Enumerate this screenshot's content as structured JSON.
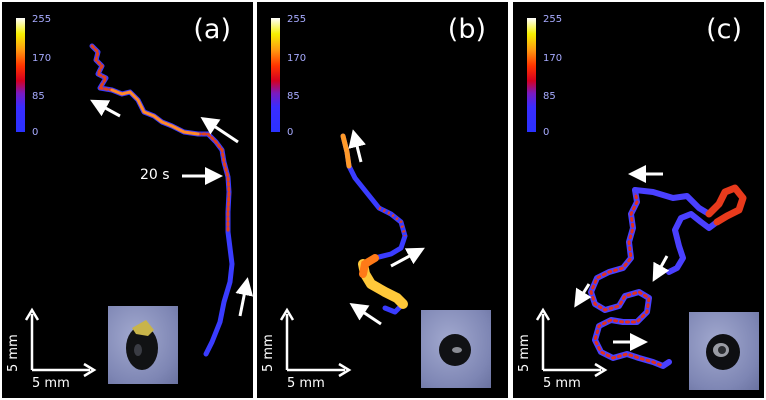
{
  "panels": [
    {
      "label": "(a)",
      "colorbar_ticks": [
        "255",
        "170",
        "85",
        "0"
      ],
      "scale_x": "5 mm",
      "scale_y": "5 mm",
      "annotation": "20 s"
    },
    {
      "label": "(b)",
      "colorbar_ticks": [
        "255",
        "170",
        "85",
        "0"
      ],
      "scale_x": "5 mm",
      "scale_y": "5 mm"
    },
    {
      "label": "(c)",
      "colorbar_ticks": [
        "255",
        "170",
        "85",
        "0"
      ],
      "scale_x": "5 mm",
      "scale_y": "5 mm"
    }
  ],
  "colors": {
    "background": "#000000",
    "arrows": "#ffffff",
    "colorbar_tick_text": "#a7abff",
    "trail_low": "#3a3cff",
    "trail_mid": "#e83a1a",
    "trail_high": "#ffd23a"
  }
}
